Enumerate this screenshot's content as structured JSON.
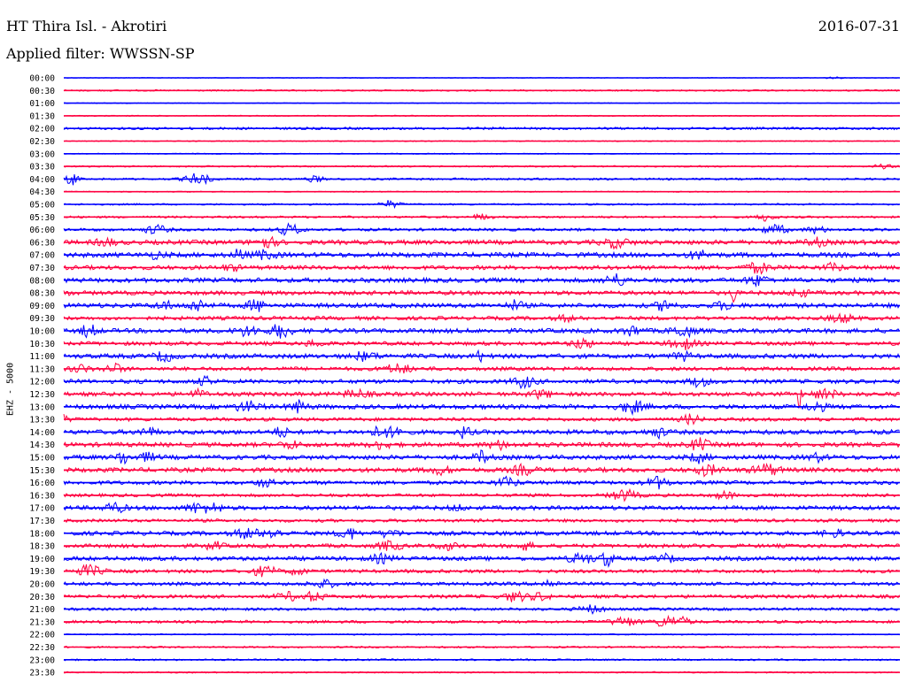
{
  "header": {
    "station": "HT Thira Isl. - Akrotiri",
    "date": "2016-07-31",
    "filter": "Applied filter: WWSSN-SP",
    "channel": "EHZ - 5000"
  },
  "colors": {
    "even": "#0000ff",
    "odd": "#ff0040",
    "text": "#000000"
  },
  "chart_data": {
    "type": "line",
    "title": "HT Thira Isl. - Akrotiri",
    "ylabel": "EHZ - 5000",
    "grid": false,
    "series": [
      {
        "time": "00:00",
        "noise": 0.4,
        "events": [
          [
            0.92,
            0.9,
            10
          ]
        ]
      },
      {
        "time": "00:30",
        "noise": 0.9,
        "events": []
      },
      {
        "time": "01:00",
        "noise": 0.5,
        "events": []
      },
      {
        "time": "01:30",
        "noise": 0.6,
        "events": []
      },
      {
        "time": "02:00",
        "noise": 1.4,
        "events": []
      },
      {
        "time": "02:30",
        "noise": 0.6,
        "events": []
      },
      {
        "time": "03:00",
        "noise": 0.6,
        "events": []
      },
      {
        "time": "03:30",
        "noise": 0.9,
        "events": [
          [
            0.98,
            2,
            12
          ]
        ]
      },
      {
        "time": "04:00",
        "noise": 1.2,
        "events": [
          [
            0.01,
            7,
            6
          ],
          [
            0.16,
            6,
            14
          ],
          [
            0.3,
            3,
            10
          ]
        ]
      },
      {
        "time": "04:30",
        "noise": 0.6,
        "events": []
      },
      {
        "time": "05:00",
        "noise": 1.0,
        "events": [
          [
            0.39,
            4,
            10
          ]
        ]
      },
      {
        "time": "05:30",
        "noise": 1.2,
        "events": [
          [
            0.5,
            3,
            10
          ],
          [
            0.84,
            4,
            10
          ]
        ]
      },
      {
        "time": "06:00",
        "noise": 1.6,
        "events": [
          [
            0.11,
            5,
            12
          ],
          [
            0.27,
            6,
            12
          ],
          [
            0.85,
            5,
            14
          ],
          [
            0.9,
            4,
            10
          ]
        ]
      },
      {
        "time": "06:30",
        "noise": 2.6,
        "events": [
          [
            0.05,
            4,
            10
          ],
          [
            0.24,
            6,
            12
          ],
          [
            0.66,
            5,
            14
          ],
          [
            0.9,
            4,
            10
          ]
        ]
      },
      {
        "time": "07:00",
        "noise": 2.8,
        "events": [
          [
            0.11,
            3,
            10
          ],
          [
            0.21,
            8,
            5
          ],
          [
            0.24,
            4,
            12
          ],
          [
            0.76,
            4,
            12
          ]
        ]
      },
      {
        "time": "07:30",
        "noise": 2.4,
        "events": [
          [
            0.2,
            3,
            10
          ],
          [
            0.83,
            5,
            14
          ],
          [
            0.92,
            4,
            10
          ]
        ]
      },
      {
        "time": "08:00",
        "noise": 2.6,
        "events": [
          [
            0.66,
            6,
            12
          ],
          [
            0.83,
            5,
            12
          ]
        ]
      },
      {
        "time": "08:30",
        "noise": 2.4,
        "events": [
          [
            0.0,
            4,
            5
          ],
          [
            0.8,
            11,
            3
          ],
          [
            0.88,
            4,
            10
          ]
        ]
      },
      {
        "time": "09:00",
        "noise": 2.6,
        "events": [
          [
            0.12,
            4,
            10
          ],
          [
            0.16,
            6,
            10
          ],
          [
            0.23,
            6,
            10
          ],
          [
            0.54,
            5,
            8
          ],
          [
            0.72,
            6,
            10
          ],
          [
            0.79,
            4,
            10
          ]
        ]
      },
      {
        "time": "09:30",
        "noise": 2.2,
        "events": [
          [
            0.6,
            3,
            10
          ],
          [
            0.93,
            4,
            14
          ]
        ]
      },
      {
        "time": "10:00",
        "noise": 2.6,
        "events": [
          [
            0.03,
            7,
            8
          ],
          [
            0.22,
            5,
            12
          ],
          [
            0.26,
            8,
            10
          ],
          [
            0.68,
            5,
            10
          ],
          [
            0.74,
            6,
            12
          ]
        ]
      },
      {
        "time": "10:30",
        "noise": 2.2,
        "events": [
          [
            0.3,
            3,
            10
          ],
          [
            0.62,
            6,
            10
          ],
          [
            0.74,
            6,
            14
          ]
        ]
      },
      {
        "time": "11:00",
        "noise": 2.6,
        "events": [
          [
            0.12,
            5,
            10
          ],
          [
            0.36,
            4,
            14
          ],
          [
            0.5,
            6,
            6
          ],
          [
            0.74,
            4,
            10
          ]
        ]
      },
      {
        "time": "11:30",
        "noise": 2.2,
        "events": [
          [
            0.02,
            4,
            10
          ],
          [
            0.06,
            5,
            10
          ],
          [
            0.4,
            5,
            14
          ]
        ]
      },
      {
        "time": "12:00",
        "noise": 2.4,
        "events": [
          [
            0.17,
            4,
            10
          ],
          [
            0.55,
            6,
            12
          ],
          [
            0.76,
            5,
            10
          ]
        ]
      },
      {
        "time": "12:30",
        "noise": 2.4,
        "events": [
          [
            0.16,
            4,
            10
          ],
          [
            0.35,
            4,
            14
          ],
          [
            0.57,
            4,
            12
          ],
          [
            0.91,
            5,
            14
          ],
          [
            0.88,
            16,
            2
          ]
        ]
      },
      {
        "time": "13:00",
        "noise": 2.6,
        "events": [
          [
            0.22,
            5,
            14
          ],
          [
            0.28,
            6,
            10
          ],
          [
            0.68,
            6,
            14
          ],
          [
            0.9,
            5,
            10
          ]
        ]
      },
      {
        "time": "13:30",
        "noise": 2.0,
        "events": [
          [
            0.0,
            4,
            6
          ],
          [
            0.75,
            5,
            10
          ]
        ]
      },
      {
        "time": "14:00",
        "noise": 2.6,
        "events": [
          [
            0.1,
            4,
            10
          ],
          [
            0.26,
            5,
            8
          ],
          [
            0.38,
            5,
            14
          ],
          [
            0.4,
            7,
            6
          ],
          [
            0.48,
            7,
            6
          ],
          [
            0.71,
            5,
            10
          ]
        ]
      },
      {
        "time": "14:30",
        "noise": 2.6,
        "events": [
          [
            0.27,
            4,
            10
          ],
          [
            0.38,
            4,
            10
          ],
          [
            0.52,
            4,
            12
          ],
          [
            0.76,
            6,
            10
          ]
        ]
      },
      {
        "time": "15:00",
        "noise": 2.6,
        "events": [
          [
            0.07,
            8,
            6
          ],
          [
            0.1,
            4,
            10
          ],
          [
            0.5,
            6,
            8
          ],
          [
            0.76,
            5,
            10
          ],
          [
            0.9,
            4,
            10
          ]
        ]
      },
      {
        "time": "15:30",
        "noise": 2.6,
        "events": [
          [
            0.45,
            4,
            12
          ],
          [
            0.55,
            5,
            12
          ],
          [
            0.77,
            5,
            14
          ],
          [
            0.84,
            6,
            14
          ]
        ]
      },
      {
        "time": "16:00",
        "noise": 2.2,
        "events": [
          [
            0.24,
            4,
            10
          ],
          [
            0.53,
            5,
            12
          ],
          [
            0.71,
            6,
            12
          ]
        ]
      },
      {
        "time": "16:30",
        "noise": 1.8,
        "events": [
          [
            0.67,
            6,
            14
          ],
          [
            0.79,
            4,
            10
          ]
        ]
      },
      {
        "time": "17:00",
        "noise": 2.4,
        "events": [
          [
            0.06,
            5,
            12
          ],
          [
            0.16,
            5,
            12
          ],
          [
            0.18,
            5,
            8
          ],
          [
            0.47,
            3,
            8
          ]
        ]
      },
      {
        "time": "17:30",
        "noise": 1.8,
        "events": []
      },
      {
        "time": "18:00",
        "noise": 2.4,
        "events": [
          [
            0.22,
            5,
            14
          ],
          [
            0.25,
            6,
            8
          ],
          [
            0.34,
            6,
            10
          ],
          [
            0.39,
            4,
            10
          ],
          [
            0.92,
            4,
            10
          ]
        ]
      },
      {
        "time": "18:30",
        "noise": 2.2,
        "events": [
          [
            0.18,
            4,
            10
          ],
          [
            0.39,
            5,
            12
          ],
          [
            0.46,
            4,
            10
          ],
          [
            0.55,
            4,
            10
          ]
        ]
      },
      {
        "time": "19:00",
        "noise": 2.4,
        "events": [
          [
            0.38,
            4,
            12
          ],
          [
            0.62,
            5,
            14
          ],
          [
            0.65,
            9,
            6
          ],
          [
            0.72,
            4,
            10
          ]
        ]
      },
      {
        "time": "19:30",
        "noise": 2.0,
        "events": [
          [
            0.03,
            6,
            14
          ],
          [
            0.24,
            5,
            14
          ],
          [
            0.28,
            4,
            8
          ]
        ]
      },
      {
        "time": "20:00",
        "noise": 2.0,
        "events": [
          [
            0.31,
            4,
            14
          ],
          [
            0.58,
            4,
            10
          ]
        ]
      },
      {
        "time": "20:30",
        "noise": 2.0,
        "events": [
          [
            0.27,
            4,
            14
          ],
          [
            0.3,
            5,
            10
          ],
          [
            0.54,
            5,
            14
          ],
          [
            0.57,
            4,
            10
          ]
        ]
      },
      {
        "time": "21:00",
        "noise": 1.6,
        "events": [
          [
            0.63,
            4,
            14
          ]
        ]
      },
      {
        "time": "21:30",
        "noise": 1.6,
        "events": [
          [
            0.67,
            5,
            14
          ],
          [
            0.72,
            6,
            12
          ],
          [
            0.74,
            4,
            10
          ]
        ]
      },
      {
        "time": "22:00",
        "noise": 0.8,
        "events": []
      },
      {
        "time": "22:30",
        "noise": 1.0,
        "events": []
      },
      {
        "time": "23:00",
        "noise": 1.0,
        "events": []
      },
      {
        "time": "23:30",
        "noise": 0.8,
        "events": []
      }
    ]
  }
}
